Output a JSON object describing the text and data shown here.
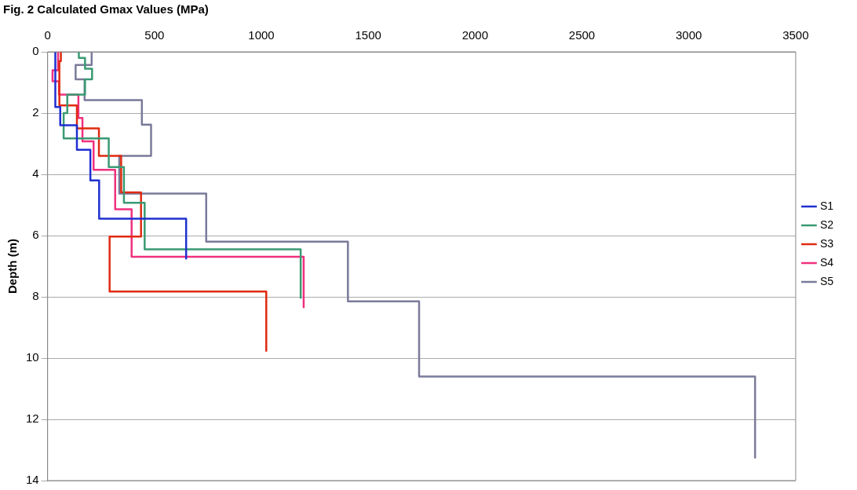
{
  "chart_data": {
    "type": "line",
    "title": "Fig. 2 Calculated Gmax Values (MPa)",
    "ylabel": "Depth (m)",
    "xlim": [
      0,
      3500
    ],
    "xticks": [
      0,
      500,
      1000,
      1500,
      2000,
      2500,
      3000,
      3500
    ],
    "ylim": [
      14,
      0
    ],
    "yticks": [
      0,
      2,
      4,
      6,
      8,
      10,
      12,
      14
    ],
    "grid": "y",
    "legend": "right",
    "marker": "none",
    "line_style": "solid",
    "series": [
      {
        "name": "S1",
        "color": "#1f2fd0",
        "x": [
          36,
          36,
          59,
          59,
          137,
          137,
          200,
          200,
          241,
          241,
          648,
          648
        ],
        "values": [
          0,
          1.8,
          1.8,
          2.4,
          2.4,
          3.2,
          3.2,
          4.2,
          4.2,
          5.45,
          5.45,
          6.75
        ]
      },
      {
        "name": "S2",
        "color": "#3a9a73",
        "x": [
          146,
          146,
          175,
          175,
          208,
          208,
          175,
          175,
          92,
          92,
          75,
          75,
          286,
          286,
          357,
          357,
          454,
          454,
          1184,
          1184
        ],
        "values": [
          0,
          0.2,
          0.2,
          0.55,
          0.55,
          0.9,
          0.9,
          1.4,
          1.4,
          2.0,
          2.0,
          2.83,
          2.83,
          3.76,
          3.76,
          4.93,
          4.93,
          6.45,
          6.45,
          8.03
        ]
      },
      {
        "name": "S3",
        "color": "#e02a10",
        "x": [
          62,
          62,
          55,
          55,
          137,
          137,
          240,
          240,
          344,
          344,
          437,
          437,
          290,
          290,
          1023,
          1023
        ],
        "values": [
          0,
          0.3,
          0.3,
          1.75,
          1.75,
          2.5,
          2.5,
          3.4,
          3.4,
          4.59,
          4.59,
          6.03,
          6.03,
          7.83,
          7.83,
          9.76
        ]
      },
      {
        "name": "S4",
        "color": "#f0307f",
        "x": [
          49,
          49,
          23,
          23,
          53,
          53,
          144,
          144,
          163,
          163,
          215,
          215,
          316,
          316,
          393,
          393,
          1198,
          1198
        ],
        "values": [
          0,
          0.6,
          0.6,
          0.96,
          0.96,
          1.4,
          1.4,
          2.16,
          2.16,
          2.92,
          2.92,
          3.85,
          3.85,
          5.14,
          5.14,
          6.69,
          6.69,
          8.34
        ]
      },
      {
        "name": "S5",
        "color": "#7a7a9a",
        "x": [
          206,
          206,
          131,
          131,
          173,
          173,
          441,
          441,
          484,
          484,
          335,
          335,
          742,
          742,
          1405,
          1405,
          1738,
          1738,
          3310,
          3310
        ],
        "values": [
          0,
          0.43,
          0.43,
          0.9,
          0.9,
          1.58,
          1.58,
          2.38,
          2.38,
          3.4,
          3.4,
          4.63,
          4.63,
          6.2,
          6.2,
          8.15,
          8.15,
          10.6,
          10.6,
          13.25
        ]
      }
    ]
  }
}
